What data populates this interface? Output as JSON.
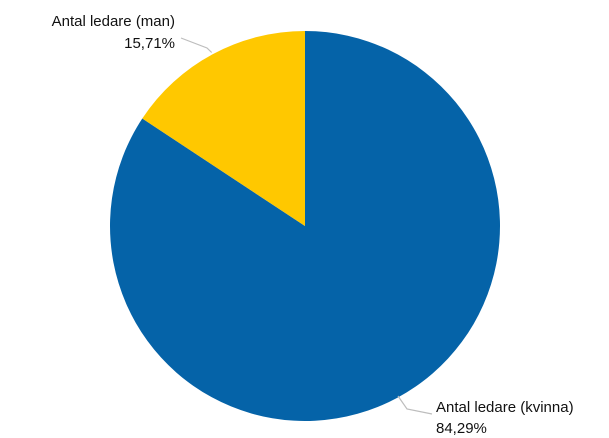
{
  "chart_data": {
    "type": "pie",
    "title": "",
    "slices": [
      {
        "label": "Antal ledare (kvinna)",
        "value_text": "84,29%",
        "value": 84.29,
        "color": "#0563A8"
      },
      {
        "label": "Antal ledare (man)",
        "value_text": "15,71%",
        "value": 15.71,
        "color": "#FFC800"
      }
    ],
    "legend": "none",
    "start_angle": "12 o'clock",
    "direction": "clockwise"
  }
}
